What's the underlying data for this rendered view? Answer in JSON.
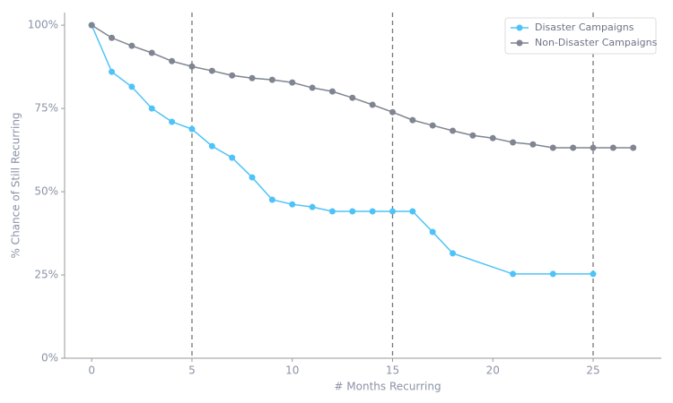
{
  "chart_data": {
    "type": "line",
    "xlabel": "# Months Recurring",
    "ylabel": "% Chance of Still Recurring",
    "series": [
      {
        "name": "Disaster Campaigns",
        "color": "#4fc3f7",
        "x": [
          0,
          1,
          2,
          3,
          4,
          5,
          6,
          7,
          8,
          9,
          10,
          11,
          12,
          13,
          14,
          15,
          16,
          17,
          18,
          21,
          23,
          25
        ],
        "values": [
          100,
          86.0,
          81.5,
          75.0,
          71.0,
          68.8,
          63.7,
          60.2,
          54.3,
          47.6,
          46.2,
          45.4,
          44.1,
          44.1,
          44.1,
          44.1,
          44.1,
          37.9,
          31.5,
          25.3,
          25.3,
          25.3
        ]
      },
      {
        "name": "Non-Disaster Campaigns",
        "color": "#7f8591",
        "x": [
          0,
          1,
          2,
          3,
          4,
          5,
          6,
          7,
          8,
          9,
          10,
          11,
          12,
          13,
          14,
          15,
          16,
          17,
          18,
          19,
          20,
          21,
          22,
          23,
          24,
          25,
          26,
          27
        ],
        "values": [
          100,
          96.2,
          93.8,
          91.7,
          89.2,
          87.6,
          86.3,
          84.9,
          84.1,
          83.6,
          82.8,
          81.2,
          80.1,
          78.2,
          76.1,
          73.9,
          71.5,
          69.9,
          68.3,
          66.9,
          66.1,
          64.8,
          64.2,
          63.2,
          63.2,
          63.2,
          63.2,
          63.2
        ]
      }
    ],
    "vlines": [
      5,
      15,
      25
    ],
    "xlim": [
      -1.35,
      28.4
    ],
    "xticks": [
      0,
      5,
      10,
      15,
      20,
      25
    ],
    "ylim": [
      0,
      103.8
    ],
    "yticks": [
      {
        "value": 0,
        "label": "0%"
      },
      {
        "value": 25,
        "label": "25%"
      },
      {
        "value": 50,
        "label": "50%"
      },
      {
        "value": 75,
        "label": "75%"
      },
      {
        "value": 100,
        "label": "100%"
      }
    ],
    "legend": "upper right"
  }
}
